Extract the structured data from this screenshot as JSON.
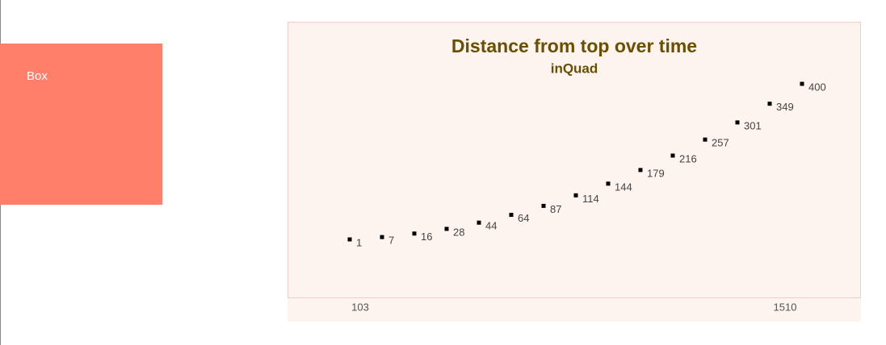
{
  "box": {
    "label": "Box"
  },
  "chart_data": {
    "type": "scatter",
    "title": "Distance from top over time",
    "subtitle": "inQuad",
    "values": [
      1,
      7,
      16,
      28,
      44,
      64,
      87,
      114,
      144,
      179,
      216,
      257,
      301,
      349,
      400
    ],
    "color": "#000000",
    "range_labels": [
      103,
      1510
    ]
  }
}
